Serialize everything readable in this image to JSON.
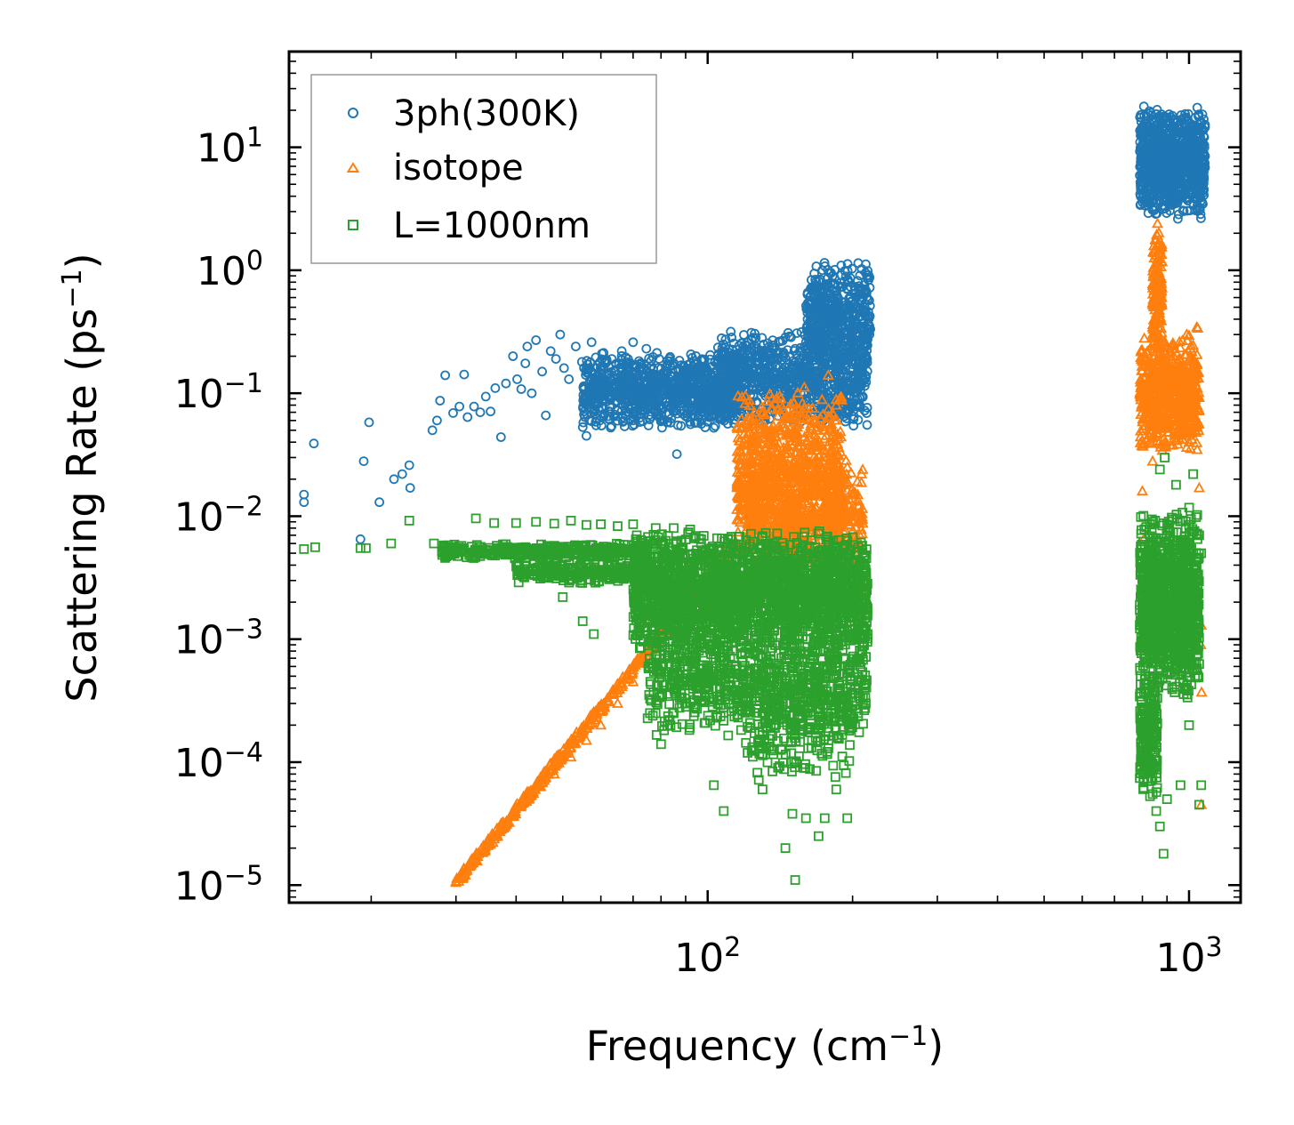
{
  "chart_data": {
    "type": "scatter",
    "xscale": "log",
    "yscale": "log",
    "xlim": [
      13.5,
      1280
    ],
    "ylim": [
      7.2e-06,
      60
    ],
    "xlabel": "Frequency (cm",
    "xlabel_sup": "−1",
    "xlabel_end": ")",
    "ylabel": "Scattering Rate (ps",
    "ylabel_sup": "−1",
    "ylabel_end": ")",
    "legend_position": "upper-left",
    "x_ticks": [
      {
        "value": 100,
        "base": "10",
        "exp": "2"
      },
      {
        "value": 1000,
        "base": "10",
        "exp": "3"
      }
    ],
    "y_ticks": [
      {
        "value": 10,
        "base": "10",
        "exp": "1"
      },
      {
        "value": 1,
        "base": "10",
        "exp": "0"
      },
      {
        "value": 0.1,
        "base": "10",
        "exp": "−1"
      },
      {
        "value": 0.01,
        "base": "10",
        "exp": "−2"
      },
      {
        "value": 0.001,
        "base": "10",
        "exp": "−3"
      },
      {
        "value": 0.0001,
        "base": "10",
        "exp": "−4"
      },
      {
        "value": 1e-05,
        "base": "10",
        "exp": "−5"
      }
    ],
    "series": [
      {
        "name": "3ph(300K)",
        "marker": "circle",
        "color": "#1f77b4",
        "points": [
          [
            14.5,
            0.015
          ],
          [
            14.5,
            0.013
          ],
          [
            15.2,
            0.039
          ],
          [
            19.0,
            0.0065
          ],
          [
            19.3,
            0.028
          ],
          [
            19.8,
            0.058
          ],
          [
            20.8,
            0.013
          ],
          [
            22.3,
            0.02
          ],
          [
            23.2,
            0.022
          ],
          [
            24.0,
            0.026
          ],
          [
            24.1,
            0.017
          ],
          [
            26.8,
            0.05
          ],
          [
            27.4,
            0.06
          ],
          [
            27.8,
            0.087
          ],
          [
            28.5,
            0.14
          ],
          [
            29.6,
            0.069
          ],
          [
            30.5,
            0.078
          ],
          [
            31.2,
            0.142
          ],
          [
            31.7,
            0.064
          ],
          [
            32.7,
            0.078
          ],
          [
            33.7,
            0.07
          ],
          [
            34.6,
            0.094
          ],
          [
            35.4,
            0.071
          ],
          [
            36.2,
            0.11
          ],
          [
            37.2,
            0.044
          ],
          [
            38.1,
            0.12
          ],
          [
            39.4,
            0.2
          ],
          [
            40.2,
            0.13
          ],
          [
            41.0,
            0.108
          ],
          [
            41.8,
            0.175
          ],
          [
            42.2,
            0.24
          ],
          [
            43.1,
            0.1
          ],
          [
            44.0,
            0.27
          ],
          [
            45.3,
            0.15
          ],
          [
            46.1,
            0.066
          ],
          [
            47.2,
            0.22
          ],
          [
            48.4,
            0.19
          ],
          [
            49.4,
            0.3
          ],
          [
            50.3,
            0.16
          ],
          [
            51.5,
            0.13
          ],
          [
            53.2,
            0.24
          ],
          [
            54.8,
            0.18
          ],
          [
            56.0,
            0.045
          ],
          [
            57.4,
            0.26
          ],
          [
            58.9,
            0.16
          ],
          [
            60.3,
            0.21
          ],
          [
            61.8,
            0.14
          ],
          [
            63.2,
            0.19
          ],
          [
            65.0,
            0.072
          ],
          [
            66.3,
            0.22
          ],
          [
            68.1,
            0.17
          ],
          [
            70.0,
            0.26
          ],
          [
            72.2,
            0.16
          ],
          [
            74.6,
            0.23
          ],
          [
            77.0,
            0.14
          ],
          [
            79.3,
            0.19
          ],
          [
            81.5,
            0.15
          ],
          [
            84.0,
            0.12
          ],
          [
            86.3,
            0.032
          ],
          [
            88.2,
            0.14
          ],
          [
            91.0,
            0.1
          ],
          [
            95.0,
            0.12
          ],
          [
            100.0,
            0.08
          ],
          [
            105.0,
            0.095
          ],
          [
            110.0,
            0.11
          ],
          [
            118.0,
            0.16
          ],
          [
            125.0,
            0.22
          ],
          [
            133.0,
            0.15
          ],
          [
            140.0,
            0.19
          ],
          [
            150.0,
            0.12
          ],
          [
            160.0,
            0.26
          ],
          [
            168.0,
            0.38
          ],
          [
            176.0,
            0.48
          ],
          [
            185.0,
            0.55
          ],
          [
            195.0,
            0.7
          ],
          [
            205.0,
            0.82
          ],
          [
            213.0,
            1.12
          ],
          [
            807.0,
            18.0
          ],
          [
            815.0,
            5.0
          ],
          [
            825.0,
            12.0
          ],
          [
            840.0,
            9.5
          ],
          [
            855.0,
            3.2
          ],
          [
            865.0,
            6.5
          ],
          [
            880.0,
            12.0
          ],
          [
            900.0,
            13.0
          ],
          [
            930.0,
            11.0
          ],
          [
            960.0,
            4.5
          ],
          [
            990.0,
            17.0
          ],
          [
            1020.0,
            15.0
          ],
          [
            1040.0,
            21.0
          ],
          [
            1060.0,
            16.0
          ]
        ],
        "bands": [
          {
            "x": [
              55,
              115
            ],
            "y": [
              0.05,
              0.22
            ],
            "n": 1000,
            "stepX": 0.9
          },
          {
            "x": [
              105,
              215
            ],
            "y": [
              0.05,
              0.35
            ],
            "n": 900,
            "stepX": 0.9
          },
          {
            "x": [
              160,
              218
            ],
            "y": [
              0.15,
              1.2
            ],
            "n": 500,
            "stepX": 0.8
          },
          {
            "x": [
              790,
              1080
            ],
            "y": [
              2.5,
              22
            ],
            "n": 900,
            "stepX": 0.8
          }
        ]
      },
      {
        "name": "isotope",
        "marker": "triangle",
        "color": "#ff7f0e",
        "points": [
          [
            30.0,
            1.05e-05
          ],
          [
            31.0,
            1.25e-05
          ],
          [
            33.0,
            1.7e-05
          ],
          [
            35.0,
            2.2e-05
          ],
          [
            37.0,
            2.8e-05
          ],
          [
            39.0,
            3.6e-05
          ],
          [
            42.0,
            4.8e-05
          ],
          [
            45.0,
            6.3e-05
          ],
          [
            48.0,
            8e-05
          ],
          [
            52.0,
            0.00011
          ],
          [
            56.0,
            0.00015
          ],
          [
            60.0,
            0.0002
          ],
          [
            65.0,
            0.0003
          ],
          [
            70.0,
            0.00045
          ],
          [
            75.0,
            0.0007
          ],
          [
            80.0,
            0.001
          ],
          [
            88.0,
            0.0015
          ],
          [
            95.0,
            0.0022
          ],
          [
            105.0,
            0.0035
          ],
          [
            115.0,
            0.006
          ],
          [
            125.0,
            0.07
          ],
          [
            130.0,
            0.033
          ],
          [
            142.0,
            0.09
          ],
          [
            155.0,
            0.04
          ],
          [
            160.0,
            0.062
          ],
          [
            170.0,
            0.038
          ],
          [
            178.0,
            0.14
          ],
          [
            185.0,
            0.08
          ],
          [
            195.0,
            0.025
          ],
          [
            200.0,
            0.009
          ],
          [
            210.0,
            0.0025
          ],
          [
            800.0,
            0.07
          ],
          [
            820.0,
            0.12
          ],
          [
            840.0,
            0.028
          ],
          [
            850.0,
            0.3
          ],
          [
            860.0,
            2.4
          ],
          [
            880.0,
            0.12
          ],
          [
            920.0,
            0.19
          ],
          [
            960.0,
            0.08
          ],
          [
            1000.0,
            0.04
          ],
          [
            1050.0,
            0.017
          ],
          [
            800.0,
            0.016
          ],
          [
            805.0,
            0.0065
          ],
          [
            1060.0,
            0.0013
          ],
          [
            1058.0,
            0.0009
          ],
          [
            1062.0,
            0.00037
          ],
          [
            1060.0,
            4.5e-05
          ]
        ],
        "bands": [
          {
            "x": [
              115,
              190
            ],
            "y": [
              0.004,
              0.12
            ],
            "n": 900,
            "stepX": 0.8
          },
          {
            "x": [
              120,
              210
            ],
            "y": [
              0.0035,
              0.03
            ],
            "n": 500,
            "stepX": 0.8
          },
          {
            "x": [
              790,
              1050
            ],
            "y": [
              0.03,
              0.35
            ],
            "n": 700,
            "stepX": 0.6
          },
          {
            "x": [
              840,
              880
            ],
            "y": [
              0.2,
              2.2
            ],
            "n": 150,
            "stepX": 0.4
          }
        ]
      },
      {
        "name": "L=1000nm",
        "marker": "square",
        "color": "#2ca02c",
        "points": [
          [
            14.5,
            0.0054
          ],
          [
            15.3,
            0.0056
          ],
          [
            19.0,
            0.0055
          ],
          [
            19.5,
            0.0055
          ],
          [
            22.0,
            0.006
          ],
          [
            24.0,
            0.0092
          ],
          [
            27.0,
            0.006
          ],
          [
            28.5,
            0.0052
          ],
          [
            31.0,
            0.0055
          ],
          [
            33.0,
            0.0096
          ],
          [
            36.0,
            0.0088
          ],
          [
            40.0,
            0.0088
          ],
          [
            44.0,
            0.009
          ],
          [
            48.0,
            0.0087
          ],
          [
            52.0,
            0.0092
          ],
          [
            56.0,
            0.0085
          ],
          [
            60.0,
            0.0086
          ],
          [
            65.0,
            0.0083
          ],
          [
            70.0,
            0.0086
          ],
          [
            78.0,
            0.008
          ],
          [
            85.0,
            0.008
          ],
          [
            92.0,
            0.0078
          ],
          [
            45.0,
            0.0035
          ],
          [
            50.0,
            0.0022
          ],
          [
            55.0,
            0.0014
          ],
          [
            58.0,
            0.0011
          ],
          [
            72.0,
            0.0014
          ],
          [
            76.0,
            0.00045
          ],
          [
            80.0,
            0.00014
          ],
          [
            85.0,
            0.00025
          ],
          [
            95.0,
            0.00035
          ],
          [
            100.0,
            0.00045
          ],
          [
            103.0,
            6.5e-05
          ],
          [
            108.0,
            4e-05
          ],
          [
            118.0,
            0.00026
          ],
          [
            130.0,
            6e-05
          ],
          [
            140.0,
            9e-05
          ],
          [
            145.0,
            2e-05
          ],
          [
            150.0,
            3.8e-05
          ],
          [
            152.0,
            1.1e-05
          ],
          [
            160.0,
            3.5e-05
          ],
          [
            170.0,
            2.5e-05
          ],
          [
            175.0,
            3.5e-05
          ],
          [
            185.0,
            6e-05
          ],
          [
            195.0,
            3.5e-05
          ],
          [
            210.0,
            0.00095
          ],
          [
            215.0,
            0.0011
          ],
          [
            810.0,
            0.00025
          ],
          [
            820.0,
            7e-05
          ],
          [
            840.0,
            0.00012
          ],
          [
            855.0,
            4e-05
          ],
          [
            870.0,
            3e-05
          ],
          [
            885.0,
            1.8e-05
          ],
          [
            900.0,
            5e-05
          ],
          [
            960.0,
            6.5e-05
          ],
          [
            1000.0,
            0.0002
          ],
          [
            1050.0,
            4.5e-05
          ],
          [
            1060.0,
            6.5e-05
          ],
          [
            1060.0,
            0.005
          ],
          [
            1050.0,
            0.007
          ],
          [
            1020.0,
            0.022
          ],
          [
            1000.0,
            0.0085
          ],
          [
            890.0,
            0.03
          ],
          [
            870.0,
            0.024
          ],
          [
            940.0,
            0.018
          ],
          [
            1040.0,
            0.0045
          ]
        ],
        "bands": [
          {
            "x": [
              28,
              75
            ],
            "y": [
              0.0045,
              0.006
            ],
            "n": 400,
            "stepX": 0.5
          },
          {
            "x": [
              40,
              75
            ],
            "y": [
              0.0028,
              0.0045
            ],
            "n": 250,
            "stepX": 0.5
          },
          {
            "x": [
              70,
              215
            ],
            "y": [
              0.0008,
              0.008
            ],
            "n": 2200,
            "stepX": 0.8
          },
          {
            "x": [
              75,
              215
            ],
            "y": [
              0.00015,
              0.002
            ],
            "n": 900,
            "stepX": 0.8
          },
          {
            "x": [
              120,
              200
            ],
            "y": [
              7e-05,
              0.0006
            ],
            "n": 250,
            "stepX": 0.6
          },
          {
            "x": [
              790,
              1050
            ],
            "y": [
              0.0003,
              0.012
            ],
            "n": 1100,
            "stepX": 0.5
          },
          {
            "x": [
              790,
              860
            ],
            "y": [
              5e-05,
              0.0005
            ],
            "n": 200,
            "stepX": 0.4
          }
        ]
      }
    ]
  }
}
